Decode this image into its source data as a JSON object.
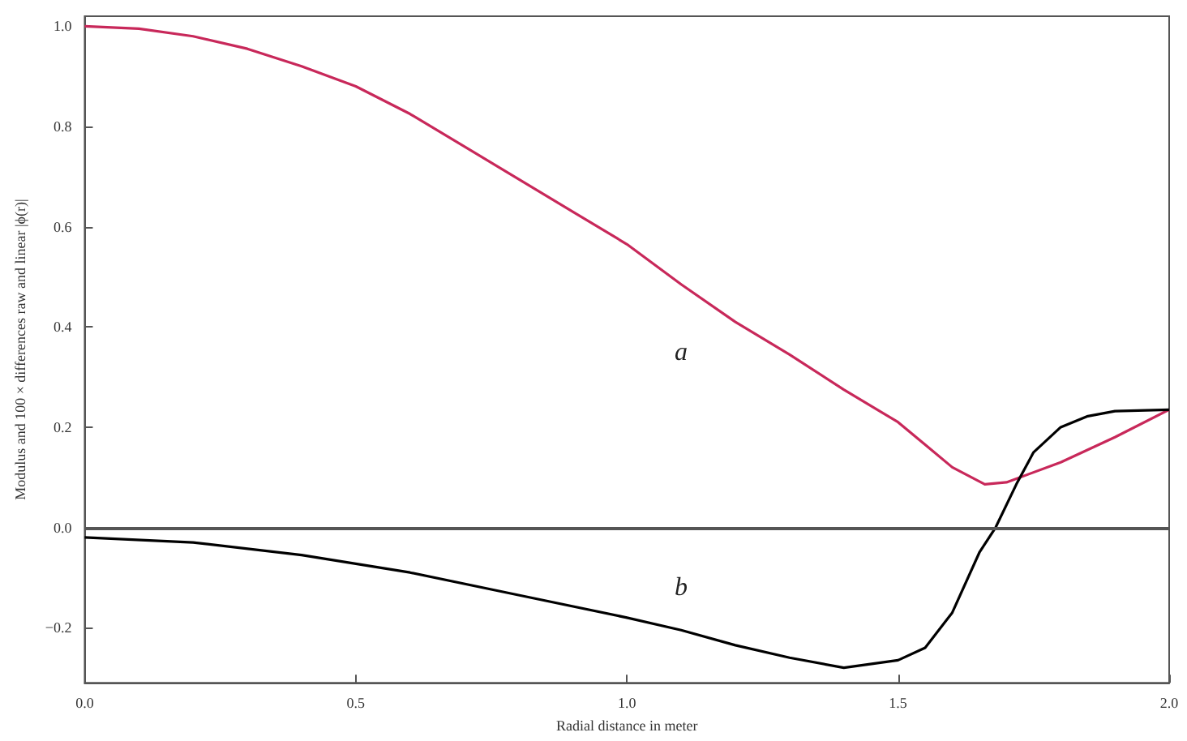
{
  "chart_data": {
    "type": "line",
    "xlabel": "Radial distance in meter",
    "ylabel": "Modulus and 100 × differences raw and linear |ϕ(r)|",
    "xlim": [
      0,
      2
    ],
    "ylim": [
      -0.31,
      1.02
    ],
    "xticks": [
      {
        "value": 0,
        "label": "0.0"
      },
      {
        "value": 0.5,
        "label": "0.5"
      },
      {
        "value": 1,
        "label": "1.0"
      },
      {
        "value": 1.5,
        "label": "1.5"
      },
      {
        "value": 2,
        "label": "2.0"
      }
    ],
    "yticks": [
      {
        "value": -0.2,
        "label": "−0.2"
      },
      {
        "value": 0,
        "label": "0.0"
      },
      {
        "value": 0.2,
        "label": "0.2"
      },
      {
        "value": 0.4,
        "label": "0.4"
      },
      {
        "value": 0.6,
        "label": "0.6"
      },
      {
        "value": 0.8,
        "label": "0.8"
      },
      {
        "value": 1,
        "label": "1.0"
      }
    ],
    "grid": false,
    "marker": "none",
    "line_style": "solid",
    "series": [
      {
        "name": "a",
        "color": "#c8285a",
        "x": [
          0,
          0.1,
          0.2,
          0.3,
          0.4,
          0.5,
          0.6,
          0.7,
          0.8,
          0.9,
          1.0,
          1.1,
          1.2,
          1.3,
          1.4,
          1.5,
          1.55,
          1.6,
          1.66,
          1.7,
          1.8,
          1.9,
          2.0
        ],
        "values": [
          1.0,
          0.995,
          0.98,
          0.955,
          0.92,
          0.88,
          0.825,
          0.76,
          0.695,
          0.63,
          0.565,
          0.485,
          0.41,
          0.345,
          0.275,
          0.21,
          0.165,
          0.12,
          0.086,
          0.09,
          0.13,
          0.18,
          0.235
        ]
      },
      {
        "name": "b",
        "color": "#000000",
        "x": [
          0,
          0.2,
          0.4,
          0.6,
          0.8,
          1.0,
          1.1,
          1.2,
          1.3,
          1.4,
          1.5,
          1.55,
          1.6,
          1.65,
          1.68,
          1.72,
          1.75,
          1.8,
          1.85,
          1.9,
          2.0
        ],
        "values": [
          -0.02,
          -0.03,
          -0.055,
          -0.09,
          -0.135,
          -0.18,
          -0.205,
          -0.235,
          -0.26,
          -0.28,
          -0.265,
          -0.24,
          -0.17,
          -0.05,
          0.0,
          0.09,
          0.15,
          0.2,
          0.222,
          0.232,
          0.235
        ]
      }
    ],
    "ref_lines": [
      {
        "axis": "y",
        "value": 0,
        "color": "#555555",
        "line_style": "solid"
      }
    ]
  }
}
